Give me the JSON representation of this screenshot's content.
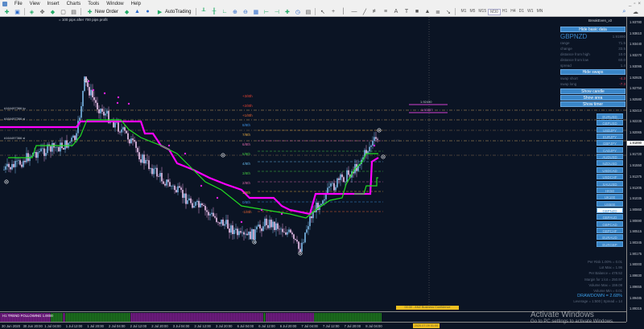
{
  "menu": [
    "File",
    "View",
    "Insert",
    "Charts",
    "Tools",
    "Window",
    "Help"
  ],
  "toolbar": {
    "new_order": "New Order",
    "autotrading": "AutoTrading",
    "timeframes": [
      "M1",
      "M5",
      "M15",
      "M30",
      "H1",
      "H4",
      "D1",
      "W1",
      "MN"
    ],
    "active_timeframe": "M30"
  },
  "chart": {
    "top_comment": "= 100 pips after 700 pips profit",
    "ea_label": "BreakEven_v2",
    "trade_labels": [
      "#164497366 tp",
      "#164497366 sl",
      "#164497366 sl"
    ],
    "price_labels": {
      "upper": "1.92430",
      "upper_magenta": "1.92237",
      "near_price": "1.91..."
    },
    "murrey": [
      {
        "t": "+3/8th",
        "c": "#e04030"
      },
      {
        "t": "+2/8th",
        "c": "#e04030"
      },
      {
        "t": "+1/8th",
        "c": "#e06030"
      },
      {
        "t": "8/8th",
        "c": "#3a8ad8"
      },
      {
        "t": "7/8th",
        "c": "#d8a040"
      },
      {
        "t": "6/8th",
        "c": "#d060a0"
      },
      {
        "t": "5/8th",
        "c": "#40c040"
      },
      {
        "t": "4/8th",
        "c": "#60b0e0"
      },
      {
        "t": "3/8th",
        "c": "#40c040"
      },
      {
        "t": "2/8th",
        "c": "#d060a0"
      },
      {
        "t": "1/8th",
        "c": "#d8a040"
      },
      {
        "t": "0/8th",
        "c": "#3a8ad8"
      },
      {
        "t": "-1/8th",
        "c": "#e06030"
      }
    ],
    "event": "00:30 - ANZ Business Confidence",
    "cursor_time": "2020.07.09 01:00",
    "indicator_label": "H1 TREND FOLLOWING 1.0000",
    "colors": {
      "background": "#0b1424",
      "bull": "#7ab8e8",
      "bear": "#e8a0e0",
      "magenta_line": "#ff00ff",
      "green_line": "#22dd22"
    }
  },
  "price_axis": [
    "1.93780",
    "1.93610",
    "1.93440",
    "1.93270",
    "1.93095",
    "1.92925",
    "1.92750",
    "1.92580",
    "1.92410",
    "1.92235",
    "1.92065",
    "1.91720",
    "1.91550",
    "1.91375",
    "1.91205",
    "1.91035",
    "1.90860",
    "1.90690",
    "1.90515",
    "1.90345",
    "1.90175",
    "1.90000",
    "1.89830",
    "1.89655",
    "1.89485",
    "1.89315"
  ],
  "current_price": "1.91890",
  "time_axis": [
    "30 Jun 2020",
    "30 Jun 20:00",
    "1 Jul 04:00",
    "1 Jul 12:00",
    "1 Jul 20:00",
    "2 Jul 04:00",
    "2 Jul 12:00",
    "2 Jul 20:00",
    "3 Jul 04:00",
    "3 Jul 12:00",
    "3 Jul 20:00",
    "6 Jul 04:00",
    "6 Jul 12:00",
    "6 Jul 20:00",
    "7 Jul 04:00",
    "7 Jul 12:00",
    "7 Jul 20:00",
    "8 Jul 04:00"
  ],
  "panel": {
    "hide_basic": "Hide basic data",
    "symbol": "GBPNZD",
    "price": "1.91890",
    "rows": [
      {
        "k": "range",
        "v": "71.5"
      },
      {
        "k": "change",
        "v": "33.5"
      },
      {
        "k": "distance from high",
        "v": "10.0"
      },
      {
        "k": "distance from low",
        "v": "60.0"
      },
      {
        "k": "spread",
        "v": "1.4"
      }
    ],
    "hide_swaps": "Hide swaps",
    "swaps": [
      {
        "k": "swap short",
        "v": "-4.3"
      },
      {
        "k": "swap long",
        "v": "-7.3"
      }
    ],
    "buttons": [
      "Show candle",
      "Show area",
      "Show timer"
    ],
    "symbols": [
      "EURUSD",
      "GBPUSD",
      "USDJPY",
      "EURJPY",
      "GBPJPY",
      "CADJPY",
      "AUDUSD",
      "NZDUSD",
      "USDCAD",
      "USDCHF",
      "XAUUSD",
      "HK50",
      "UK100",
      "US500",
      "GBPNZD",
      "GBPAUD",
      "GBPCAD",
      "GBPCHF",
      "EURAUD",
      "EURGBP"
    ],
    "selected_symbol": "GBPNZD",
    "stats": [
      "Per Risk 1.00% = 0.01",
      "Lot Max = 1.96",
      "Per Balance = 478.52",
      "Margin for 1 lot = 250.97",
      "Volume Max = 159.08",
      "Volume Min = 0.01"
    ],
    "drawdown": "DRAWDOWN = 2.68%",
    "leverage": "Leverage = 1:500 | Spread = 14"
  },
  "watermark": {
    "title": "Activate Windows",
    "sub": "Go to PC settings to activate Windows."
  }
}
